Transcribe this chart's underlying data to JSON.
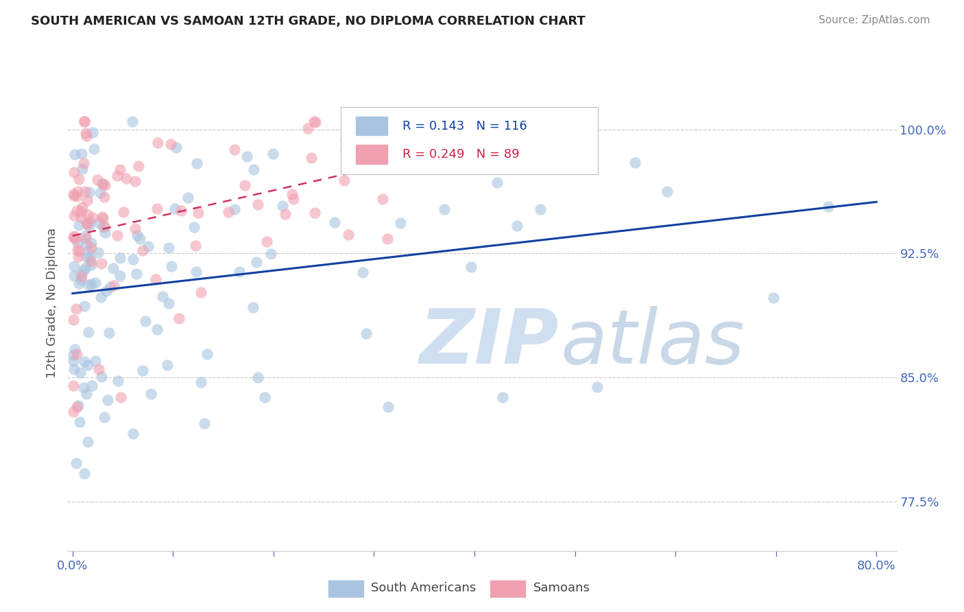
{
  "title": "SOUTH AMERICAN VS SAMOAN 12TH GRADE, NO DIPLOMA CORRELATION CHART",
  "source": "Source: ZipAtlas.com",
  "ylabel": "12th Grade, No Diploma",
  "r_blue": 0.143,
  "n_blue": 116,
  "r_pink": 0.249,
  "n_pink": 89,
  "xlim": [
    -0.005,
    0.82
  ],
  "ylim": [
    0.745,
    1.045
  ],
  "xticks": [
    0.0,
    0.1,
    0.2,
    0.3,
    0.4,
    0.5,
    0.6,
    0.7,
    0.8
  ],
  "xticklabels": [
    "0.0%",
    "",
    "",
    "",
    "",
    "",
    "",
    "",
    "80.0%"
  ],
  "yticks_right": [
    0.775,
    0.85,
    0.925,
    1.0
  ],
  "ytick_labels_right": [
    "77.5%",
    "85.0%",
    "92.5%",
    "100.0%"
  ],
  "blue_color": "#a8c4e0",
  "pink_color": "#f0a0b0",
  "trend_blue_color": "#1040a0",
  "trend_pink_color": "#d03060",
  "legend_blue_label": "South Americans",
  "legend_pink_label": "Samoans",
  "grid_color": "#cccccc",
  "tick_color": "#4466bb",
  "title_color": "#222222",
  "source_color": "#888888",
  "ylabel_color": "#555555",
  "legend_text_blue_color": "#1040a0",
  "legend_text_pink_color": "#cc2244",
  "watermark_zip_color": "#d0dff0",
  "watermark_atlas_color": "#c8d8e8"
}
